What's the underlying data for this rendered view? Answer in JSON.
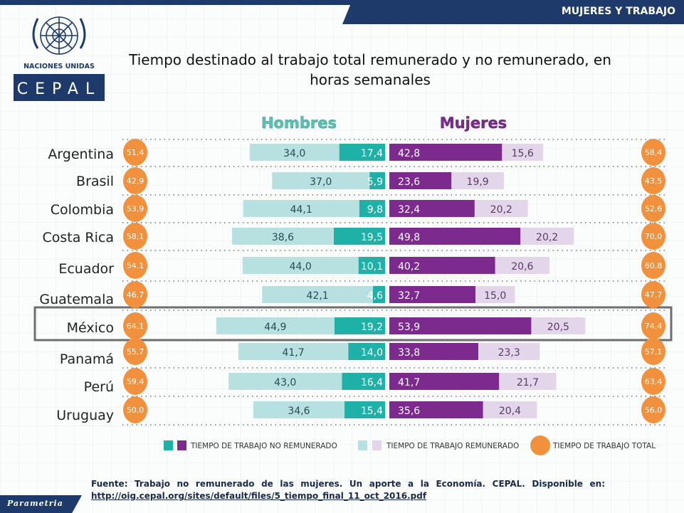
{
  "header": {
    "banner": "MUJERES Y TRABAJO"
  },
  "logo": {
    "org": "NACIONES UNIDAS",
    "name": "CEPAL"
  },
  "title": "Tiempo destinado al trabajo total remunerado y no remunerado, en horas semanales",
  "colors": {
    "men_unpaid": "#1fb1a8",
    "men_paid": "#b6e1e0",
    "women_unpaid": "#7c2a8e",
    "women_paid": "#e3d5ea",
    "total": "#f2913d",
    "men_heading": "#55c3b3",
    "women_heading": "#7c2a8e",
    "highlight_border": "#6e6e6e"
  },
  "chart_data": {
    "type": "bar",
    "title": "Tiempo destinado al trabajo total remunerado y no remunerado, en horas semanales",
    "groups": [
      "Hombres",
      "Mujeres"
    ],
    "categories": [
      "Argentina",
      "Brasil",
      "Colombia",
      "Costa Rica",
      "Ecuador",
      "Guatemala",
      "México",
      "Panamá",
      "Perú",
      "Uruguay"
    ],
    "series": [
      {
        "name": "TIEMPO DE TRABAJO REMUNERADO",
        "group": "Hombres",
        "values": [
          "34,0",
          "37,0",
          "44,1",
          "38,6",
          "44,0",
          "42,1",
          "44,9",
          "41,7",
          "43,0",
          "34,6"
        ]
      },
      {
        "name": "TIEMPO DE TRABAJO NO REMUNERADO",
        "group": "Hombres",
        "values": [
          "17,4",
          "5,9",
          "9,8",
          "19,5",
          "10,1",
          "4,6",
          "19,2",
          "14,0",
          "16,4",
          "15,4"
        ]
      },
      {
        "name": "TIEMPO DE TRABAJO NO REMUNERADO",
        "group": "Mujeres",
        "values": [
          "42,8",
          "23,6",
          "32,4",
          "49,8",
          "40,2",
          "32,7",
          "53,9",
          "33,8",
          "41,7",
          "35,6"
        ]
      },
      {
        "name": "TIEMPO DE TRABAJO REMUNERADO",
        "group": "Mujeres",
        "values": [
          "15,6",
          "19,9",
          "20,2",
          "20,2",
          "20,6",
          "15,0",
          "20,5",
          "23,3",
          "21,7",
          "20,4"
        ]
      },
      {
        "name": "TIEMPO DE TRABAJO TOTAL",
        "group": "Hombres",
        "values": [
          "51,4",
          "42,9",
          "53,9",
          "58,1",
          "54,1",
          "46,7",
          "64,1",
          "55,7",
          "59,4",
          "50,0"
        ]
      },
      {
        "name": "TIEMPO DE TRABAJO TOTAL",
        "group": "Mujeres",
        "values": [
          "58,4",
          "43,5",
          "52,6",
          "70,0",
          "60,8",
          "47,7",
          "74,4",
          "57,1",
          "63,4",
          "56,0"
        ]
      }
    ],
    "highlighted_category": "México",
    "legend": {
      "placement": "bottom",
      "items": [
        "TIEMPO DE TRABAJO NO REMUNERADO",
        "TIEMPO DE TRABAJO REMUNERADO",
        "TIEMPO DE TRABAJO TOTAL"
      ]
    }
  },
  "source": {
    "text": "Fuente: Trabajo no remunerado de las mujeres. Un aporte a la Economía. CEPAL. Disponible en:",
    "link": "http://oig.cepal.org/sites/default/files/5_tiempo_final_11_oct_2016.pdf"
  },
  "footer": {
    "brand": "Parametria"
  }
}
